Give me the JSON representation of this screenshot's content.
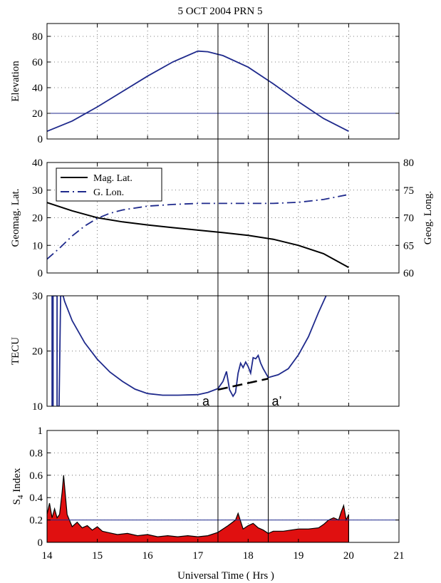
{
  "title": "5 OCT 2004  PRN  5",
  "xlabel": "Universal Time ( Hrs )",
  "xlim": [
    14,
    21
  ],
  "xticks": [
    "14",
    "15",
    "16",
    "17",
    "18",
    "19",
    "20",
    "21"
  ],
  "colors": {
    "series": "#1f2a8c",
    "mag": "#000000",
    "fill": "#e01010",
    "axis": "#000000"
  },
  "event_markers": [
    17.4,
    18.4
  ],
  "chart_data": [
    {
      "type": "line",
      "ylabel": "Elevation",
      "ylim": [
        0,
        90
      ],
      "yticks": [
        "0",
        "20",
        "40",
        "60",
        "80"
      ],
      "grid": true,
      "threshold": 20,
      "series": [
        {
          "name": "",
          "x": [
            14,
            14.5,
            15,
            15.5,
            16,
            16.5,
            17,
            17.2,
            17.5,
            18,
            18.5,
            19,
            19.5,
            20
          ],
          "y": [
            6,
            14,
            25,
            37,
            49,
            60,
            68.5,
            68,
            65,
            56,
            43,
            29,
            16,
            6
          ]
        }
      ]
    },
    {
      "type": "line",
      "ylabel": "Geomag. Lat.",
      "ylabel_right": "Geog. Long.",
      "ylim": [
        0,
        40
      ],
      "ylim_right": [
        60,
        80
      ],
      "yticks": [
        "0",
        "10",
        "20",
        "30",
        "40"
      ],
      "yticks_right": [
        "60",
        "65",
        "70",
        "75",
        "80"
      ],
      "grid": true,
      "legend": {
        "position": "top-left",
        "entries": [
          "Mag. Lat.",
          "G. Lon."
        ]
      },
      "series": [
        {
          "name": "Mag. Lat.",
          "axis": "left",
          "style": "solid",
          "x": [
            14,
            14.5,
            15,
            15.5,
            16,
            16.5,
            17,
            17.5,
            18,
            18.5,
            19,
            19.5,
            20
          ],
          "y": [
            25.5,
            22.5,
            20,
            18.5,
            17.4,
            16.4,
            15.5,
            14.6,
            13.6,
            12.2,
            10,
            7,
            2
          ]
        },
        {
          "name": "G. Lon.",
          "axis": "right",
          "style": "dashdot",
          "x": [
            14,
            14.25,
            14.5,
            14.75,
            15,
            15.25,
            15.5,
            16,
            16.5,
            17,
            17.5,
            18,
            18.5,
            19,
            19.5,
            20
          ],
          "y": [
            62.5,
            64.5,
            66.7,
            68.5,
            69.9,
            70.8,
            71.4,
            72.1,
            72.4,
            72.6,
            72.6,
            72.6,
            72.6,
            72.8,
            73.3,
            74.2
          ]
        }
      ]
    },
    {
      "type": "line",
      "ylabel": "TECU",
      "ylim": [
        10,
        30
      ],
      "yticks": [
        "10",
        "20",
        "30"
      ],
      "grid": true,
      "annotations": [
        "a",
        "a’"
      ],
      "trend_line": {
        "x": [
          17.4,
          18.4
        ],
        "y": [
          13.0,
          15.0
        ]
      },
      "series": [
        {
          "name": "",
          "x": [
            14.1,
            14.1,
            14.12,
            14.12,
            14.2,
            14.2,
            14.24,
            14.27,
            14.3,
            14.32,
            14.35,
            14.5,
            14.75,
            15,
            15.25,
            15.5,
            15.75,
            16,
            16.3,
            16.6,
            17,
            17.2,
            17.4,
            17.5,
            17.57,
            17.63,
            17.7,
            17.75,
            17.8,
            17.85,
            17.9,
            17.95,
            18,
            18.05,
            18.1,
            18.15,
            18.2,
            18.25,
            18.3,
            18.4,
            18.6,
            18.8,
            19,
            19.2,
            19.4,
            19.55
          ],
          "y": [
            30,
            10,
            10,
            30,
            30,
            10,
            10,
            30,
            30,
            30,
            29,
            25.5,
            21.5,
            18.5,
            16.2,
            14.5,
            13.1,
            12.3,
            12.0,
            12.0,
            12.1,
            12.5,
            13.2,
            14.5,
            16.3,
            13.0,
            11.8,
            12.5,
            16.0,
            17.8,
            17.0,
            18.0,
            17.2,
            16.0,
            18.8,
            18.6,
            19.2,
            17.8,
            16.8,
            15.2,
            15.7,
            16.8,
            19.3,
            22.6,
            27.0,
            30
          ]
        }
      ]
    },
    {
      "type": "area",
      "ylabel": "S4 Index",
      "ylabel_main": "S",
      "ylabel_sub": "4",
      "ylabel_rest": " Index",
      "ylim": [
        0,
        1
      ],
      "yticks": [
        "0",
        "0.2",
        "0.4",
        "0.6",
        "0.8",
        "1"
      ],
      "grid": true,
      "threshold": 0.2,
      "series": [
        {
          "name": "",
          "x": [
            14,
            14.05,
            14.1,
            14.15,
            14.2,
            14.25,
            14.3,
            14.33,
            14.4,
            14.5,
            14.6,
            14.7,
            14.8,
            14.9,
            15,
            15.1,
            15.2,
            15.4,
            15.6,
            15.8,
            16,
            16.2,
            16.4,
            16.6,
            16.8,
            17,
            17.2,
            17.4,
            17.6,
            17.75,
            17.8,
            17.9,
            18,
            18.1,
            18.2,
            18.3,
            18.4,
            18.5,
            18.7,
            19,
            19.2,
            19.4,
            19.5,
            19.6,
            19.7,
            19.8,
            19.85,
            19.9,
            19.95,
            20
          ],
          "y": [
            0.25,
            0.35,
            0.22,
            0.3,
            0.22,
            0.25,
            0.45,
            0.6,
            0.25,
            0.14,
            0.18,
            0.13,
            0.15,
            0.11,
            0.14,
            0.1,
            0.09,
            0.07,
            0.08,
            0.06,
            0.07,
            0.05,
            0.06,
            0.05,
            0.06,
            0.05,
            0.06,
            0.09,
            0.15,
            0.2,
            0.26,
            0.12,
            0.15,
            0.17,
            0.13,
            0.11,
            0.08,
            0.1,
            0.1,
            0.12,
            0.12,
            0.13,
            0.16,
            0.2,
            0.22,
            0.2,
            0.27,
            0.33,
            0.2,
            0.25
          ]
        }
      ]
    }
  ]
}
